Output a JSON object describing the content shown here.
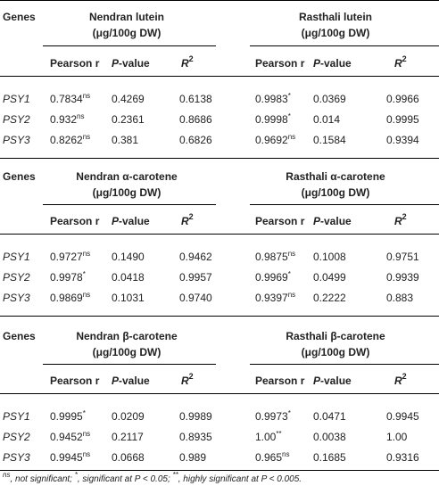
{
  "headers": {
    "genes": "Genes",
    "pearson": "Pearson r",
    "p_italic": "P",
    "p_rest": "-value",
    "r2_base": "R",
    "r2_exp": "2"
  },
  "blocks": [
    {
      "group1": {
        "line1": "Nendran lutein",
        "line2": "(μg/100g DW)"
      },
      "group2": {
        "line1": "Rasthali lutein",
        "line2": "(μg/100g DW)"
      },
      "rows": [
        {
          "gene": "PSY1",
          "g1_r": "0.7834",
          "g1_sig": "ns",
          "g1_p": "0.4269",
          "g1_r2": "0.6138",
          "g2_r": "0.9983",
          "g2_sig": "*",
          "g2_p": "0.0369",
          "g2_r2": "0.9966"
        },
        {
          "gene": "PSY2",
          "g1_r": "0.932",
          "g1_sig": "ns",
          "g1_p": "0.2361",
          "g1_r2": "0.8686",
          "g2_r": "0.9998",
          "g2_sig": "*",
          "g2_p": "0.014",
          "g2_r2": "0.9995"
        },
        {
          "gene": "PSY3",
          "g1_r": "0.8262",
          "g1_sig": "ns",
          "g1_p": "0.381",
          "g1_r2": "0.6826",
          "g2_r": "0.9692",
          "g2_sig": "ns",
          "g2_p": "0.1584",
          "g2_r2": "0.9394"
        }
      ]
    },
    {
      "group1": {
        "line1": "Nendran α-carotene",
        "line2": "(μg/100g DW)"
      },
      "group2": {
        "line1": "Rasthali α-carotene",
        "line2": "(μg/100g DW)"
      },
      "rows": [
        {
          "gene": "PSY1",
          "g1_r": "0.9727",
          "g1_sig": "ns",
          "g1_p": "0.1490",
          "g1_r2": "0.9462",
          "g2_r": "0.9875",
          "g2_sig": "ns",
          "g2_p": "0.1008",
          "g2_r2": "0.9751"
        },
        {
          "gene": "PSY2",
          "g1_r": "0.9978",
          "g1_sig": "*",
          "g1_p": "0.0418",
          "g1_r2": "0.9957",
          "g2_r": "0.9969",
          "g2_sig": "*",
          "g2_p": "0.0499",
          "g2_r2": "0.9939"
        },
        {
          "gene": "PSY3",
          "g1_r": "0.9869",
          "g1_sig": "ns",
          "g1_p": "0.1031",
          "g1_r2": "0.9740",
          "g2_r": "0.9397",
          "g2_sig": "ns",
          "g2_p": "0.2222",
          "g2_r2": "0.883"
        }
      ]
    },
    {
      "group1": {
        "line1": "Nendran β-carotene",
        "line2": "(μg/100g DW)"
      },
      "group2": {
        "line1": "Rasthali β-carotene",
        "line2": "(μg/100g DW)"
      },
      "rows": [
        {
          "gene": "PSY1",
          "g1_r": "0.9995",
          "g1_sig": "*",
          "g1_p": "0.0209",
          "g1_r2": "0.9989",
          "g2_r": "0.9973",
          "g2_sig": "*",
          "g2_p": "0.0471",
          "g2_r2": "0.9945"
        },
        {
          "gene": "PSY2",
          "g1_r": "0.9452",
          "g1_sig": "ns",
          "g1_p": "0.2117",
          "g1_r2": "0.8935",
          "g2_r": "1.00",
          "g2_sig": "**",
          "g2_p": "0.0038",
          "g2_r2": "1.00"
        },
        {
          "gene": "PSY3",
          "g1_r": "0.9945",
          "g1_sig": "ns",
          "g1_p": "0.0668",
          "g1_r2": "0.989",
          "g2_r": "0.965",
          "g2_sig": "ns",
          "g2_p": "0.1685",
          "g2_r2": "0.9316"
        }
      ]
    }
  ],
  "footnote": {
    "s1": "ns",
    "t1": ", not significant; ",
    "s2": "*",
    "t2": ", significant at ",
    "p1": "P",
    "t3": " < 0.05; ",
    "s3": "**",
    "t4": ", highly significant at ",
    "p2": "P",
    "t5": " < 0.005."
  }
}
